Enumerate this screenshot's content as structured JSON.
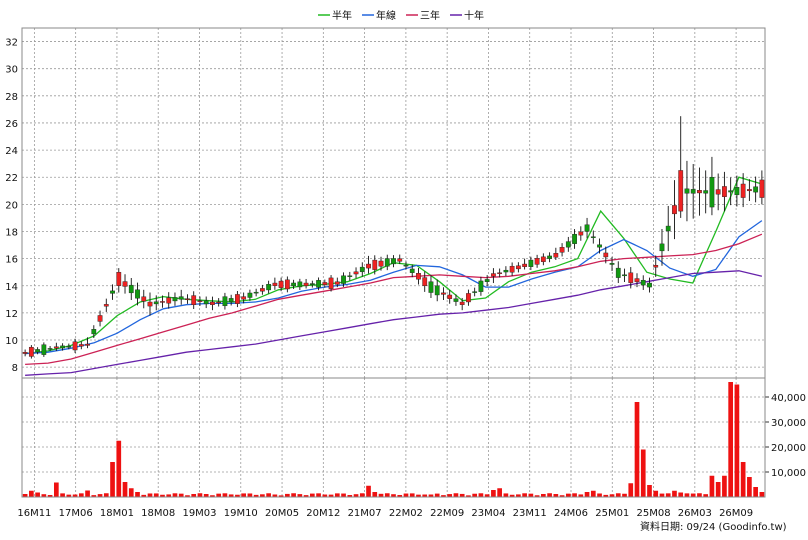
{
  "legend": [
    {
      "label": "半年",
      "color": "#22bb22"
    },
    {
      "label": "年線",
      "color": "#2266dd"
    },
    {
      "label": "三年",
      "color": "#cc2255"
    },
    {
      "label": "十年",
      "color": "#6622aa"
    }
  ],
  "footer": "資料日期: 09/24  (Goodinfo.tw)",
  "colors": {
    "up": "#ee2222",
    "down": "#119911",
    "wick": "#111111",
    "volume": "#ee1111",
    "grid": "#9a9a9a"
  },
  "chart_data": [
    {
      "type": "candlestick",
      "x_tick_labels": [
        "16M11",
        "17M06",
        "18M01",
        "18M08",
        "19M03",
        "19M10",
        "20M05",
        "20M12",
        "21M07",
        "22M02",
        "22M09",
        "23M04",
        "23M11",
        "24M06",
        "25M01",
        "25M08",
        "26M03",
        "26M09"
      ],
      "y_ticks": [
        8,
        10,
        12,
        14,
        16,
        18,
        20,
        22,
        24,
        26,
        28,
        30,
        32
      ],
      "ylim": [
        7.2,
        33
      ],
      "grid": true,
      "legend_position": "top-center",
      "n_bars": 119,
      "candles_every_fifth_bar": [
        {
          "i": 0,
          "o": 9.0,
          "c": 9.1,
          "h": 9.3,
          "l": 8.8
        },
        {
          "i": 5,
          "o": 9.4,
          "c": 9.5,
          "h": 9.8,
          "l": 9.2
        },
        {
          "i": 10,
          "o": 9.6,
          "c": 9.7,
          "h": 10.2,
          "l": 9.4
        },
        {
          "i": 15,
          "o": 14.0,
          "c": 15.0,
          "h": 15.3,
          "l": 13.5
        },
        {
          "i": 20,
          "o": 12.5,
          "c": 12.8,
          "h": 13.5,
          "l": 11.8
        },
        {
          "i": 25,
          "o": 13.2,
          "c": 13.0,
          "h": 13.7,
          "l": 12.6
        },
        {
          "i": 30,
          "o": 12.6,
          "c": 12.8,
          "h": 13.2,
          "l": 12.2
        },
        {
          "i": 35,
          "o": 13.0,
          "c": 13.2,
          "h": 13.5,
          "l": 12.7
        },
        {
          "i": 40,
          "o": 14.0,
          "c": 14.2,
          "h": 14.6,
          "l": 13.7
        },
        {
          "i": 45,
          "o": 14.0,
          "c": 14.2,
          "h": 14.5,
          "l": 13.8
        },
        {
          "i": 50,
          "o": 14.1,
          "c": 14.3,
          "h": 14.6,
          "l": 13.9
        },
        {
          "i": 55,
          "o": 15.3,
          "c": 15.6,
          "h": 16.2,
          "l": 14.9
        },
        {
          "i": 60,
          "o": 15.8,
          "c": 16.0,
          "h": 16.3,
          "l": 15.6
        },
        {
          "i": 65,
          "o": 14.3,
          "c": 13.5,
          "h": 14.8,
          "l": 13.1
        },
        {
          "i": 70,
          "o": 12.6,
          "c": 12.8,
          "h": 13.1,
          "l": 12.2
        },
        {
          "i": 75,
          "o": 14.7,
          "c": 14.9,
          "h": 15.3,
          "l": 14.2
        },
        {
          "i": 80,
          "o": 15.4,
          "c": 15.6,
          "h": 16.0,
          "l": 15.2
        },
        {
          "i": 85,
          "o": 16.1,
          "c": 16.4,
          "h": 16.8,
          "l": 15.9
        },
        {
          "i": 90,
          "o": 18.5,
          "c": 18.0,
          "h": 19.0,
          "l": 17.5
        },
        {
          "i": 95,
          "o": 15.3,
          "c": 14.6,
          "h": 15.8,
          "l": 14.2
        },
        {
          "i": 100,
          "o": 14.2,
          "c": 13.9,
          "h": 14.6,
          "l": 13.5
        },
        {
          "i": 105,
          "o": 19.5,
          "c": 22.5,
          "h": 26.5,
          "l": 19.0
        },
        {
          "i": 110,
          "o": 22.0,
          "c": 19.8,
          "h": 23.5,
          "l": 19.2
        },
        {
          "i": 115,
          "o": 20.5,
          "c": 21.5,
          "h": 22.3,
          "l": 19.8
        },
        {
          "i": 118,
          "o": 20.5,
          "c": 21.8,
          "h": 22.5,
          "l": 20.0
        }
      ],
      "series": [
        {
          "name": "半年",
          "values": [
            9.0,
            9.2,
            9.6,
            10.3,
            11.8,
            12.8,
            13.2,
            13.0,
            12.9,
            12.8,
            13.0,
            13.7,
            14.0,
            14.1,
            14.3,
            14.9,
            15.7,
            15.5,
            14.3,
            12.9,
            13.1,
            14.3,
            15.0,
            15.4,
            16.0,
            19.5,
            17.5,
            15.0,
            14.5,
            14.2,
            18.0,
            22.0,
            21.5
          ]
        },
        {
          "name": "年線",
          "values": [
            9.0,
            9.1,
            9.4,
            9.8,
            10.5,
            11.5,
            12.3,
            12.6,
            12.7,
            12.7,
            12.8,
            13.1,
            13.6,
            13.9,
            14.1,
            14.4,
            15.0,
            15.5,
            15.4,
            14.8,
            13.9,
            13.9,
            14.5,
            15.0,
            15.4,
            16.6,
            17.4,
            16.6,
            15.3,
            14.7,
            15.2,
            17.6,
            18.8
          ]
        },
        {
          "name": "三年",
          "values": [
            8.2,
            8.3,
            8.6,
            9.1,
            9.6,
            10.1,
            10.6,
            11.1,
            11.6,
            12.0,
            12.5,
            13.0,
            13.3,
            13.6,
            13.9,
            14.2,
            14.6,
            14.7,
            14.8,
            14.7,
            14.6,
            14.7,
            14.9,
            15.1,
            15.4,
            15.8,
            16.0,
            16.1,
            16.2,
            16.3,
            16.6,
            17.1,
            17.8
          ]
        },
        {
          "name": "十年",
          "values": [
            7.4,
            7.5,
            7.6,
            7.9,
            8.2,
            8.5,
            8.8,
            9.1,
            9.3,
            9.5,
            9.7,
            10.0,
            10.3,
            10.6,
            10.9,
            11.2,
            11.5,
            11.7,
            11.9,
            12.0,
            12.2,
            12.4,
            12.7,
            13.0,
            13.3,
            13.7,
            14.0,
            14.3,
            14.6,
            14.9,
            15.0,
            15.1,
            14.7
          ]
        }
      ]
    },
    {
      "type": "bar",
      "title": "",
      "y_tick_labels": [
        "10,000",
        "20,000",
        "30,000",
        "40,000"
      ],
      "ylim": [
        0,
        46000
      ],
      "note": "",
      "volume_bars": [
        {
          "i": 0,
          "v": 1200
        },
        {
          "i": 1,
          "v": 2500
        },
        {
          "i": 2,
          "v": 1800
        },
        {
          "i": 5,
          "v": 5800
        },
        {
          "i": 10,
          "v": 2600
        },
        {
          "i": 14,
          "v": 14000
        },
        {
          "i": 15,
          "v": 22500
        },
        {
          "i": 16,
          "v": 6000
        },
        {
          "i": 17,
          "v": 3500
        },
        {
          "i": 18,
          "v": 2000
        },
        {
          "i": 40,
          "v": 1000
        },
        {
          "i": 55,
          "v": 4500
        },
        {
          "i": 56,
          "v": 2000
        },
        {
          "i": 65,
          "v": 1000
        },
        {
          "i": 75,
          "v": 2800
        },
        {
          "i": 76,
          "v": 3500
        },
        {
          "i": 90,
          "v": 2000
        },
        {
          "i": 91,
          "v": 2500
        },
        {
          "i": 97,
          "v": 5500
        },
        {
          "i": 98,
          "v": 38000
        },
        {
          "i": 99,
          "v": 19000
        },
        {
          "i": 100,
          "v": 4800
        },
        {
          "i": 101,
          "v": 2500
        },
        {
          "i": 104,
          "v": 2500
        },
        {
          "i": 105,
          "v": 1800
        },
        {
          "i": 108,
          "v": 1500
        },
        {
          "i": 110,
          "v": 8500
        },
        {
          "i": 111,
          "v": 6000
        },
        {
          "i": 112,
          "v": 8500
        },
        {
          "i": 113,
          "v": 46000
        },
        {
          "i": 114,
          "v": 45000
        },
        {
          "i": 115,
          "v": 14000
        },
        {
          "i": 116,
          "v": 8000
        },
        {
          "i": 117,
          "v": 4000
        },
        {
          "i": 118,
          "v": 2000
        }
      ]
    }
  ]
}
